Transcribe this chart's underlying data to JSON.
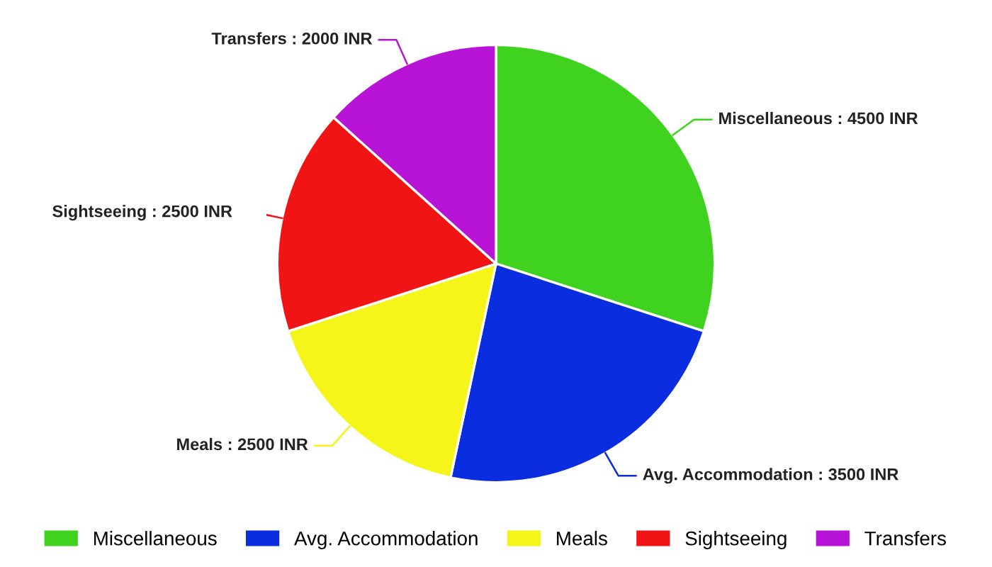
{
  "chart_data": {
    "type": "pie",
    "categories": [
      "Miscellaneous",
      "Avg. Accommodation",
      "Meals",
      "Sightseeing",
      "Transfers"
    ],
    "values": [
      4500,
      3500,
      2500,
      2500,
      2000
    ],
    "colors": [
      "#3fd320",
      "#0a2de0",
      "#f5f51a",
      "#f01414",
      "#b814d8"
    ],
    "value_labels": [
      "Miscellaneous : 4500 INR",
      "Avg. Accommodation : 3500 INR",
      "Meals : 2500 INR",
      "Sightseeing : 2500 INR",
      "Transfers : 2000 INR"
    ],
    "legend": "bottom"
  }
}
